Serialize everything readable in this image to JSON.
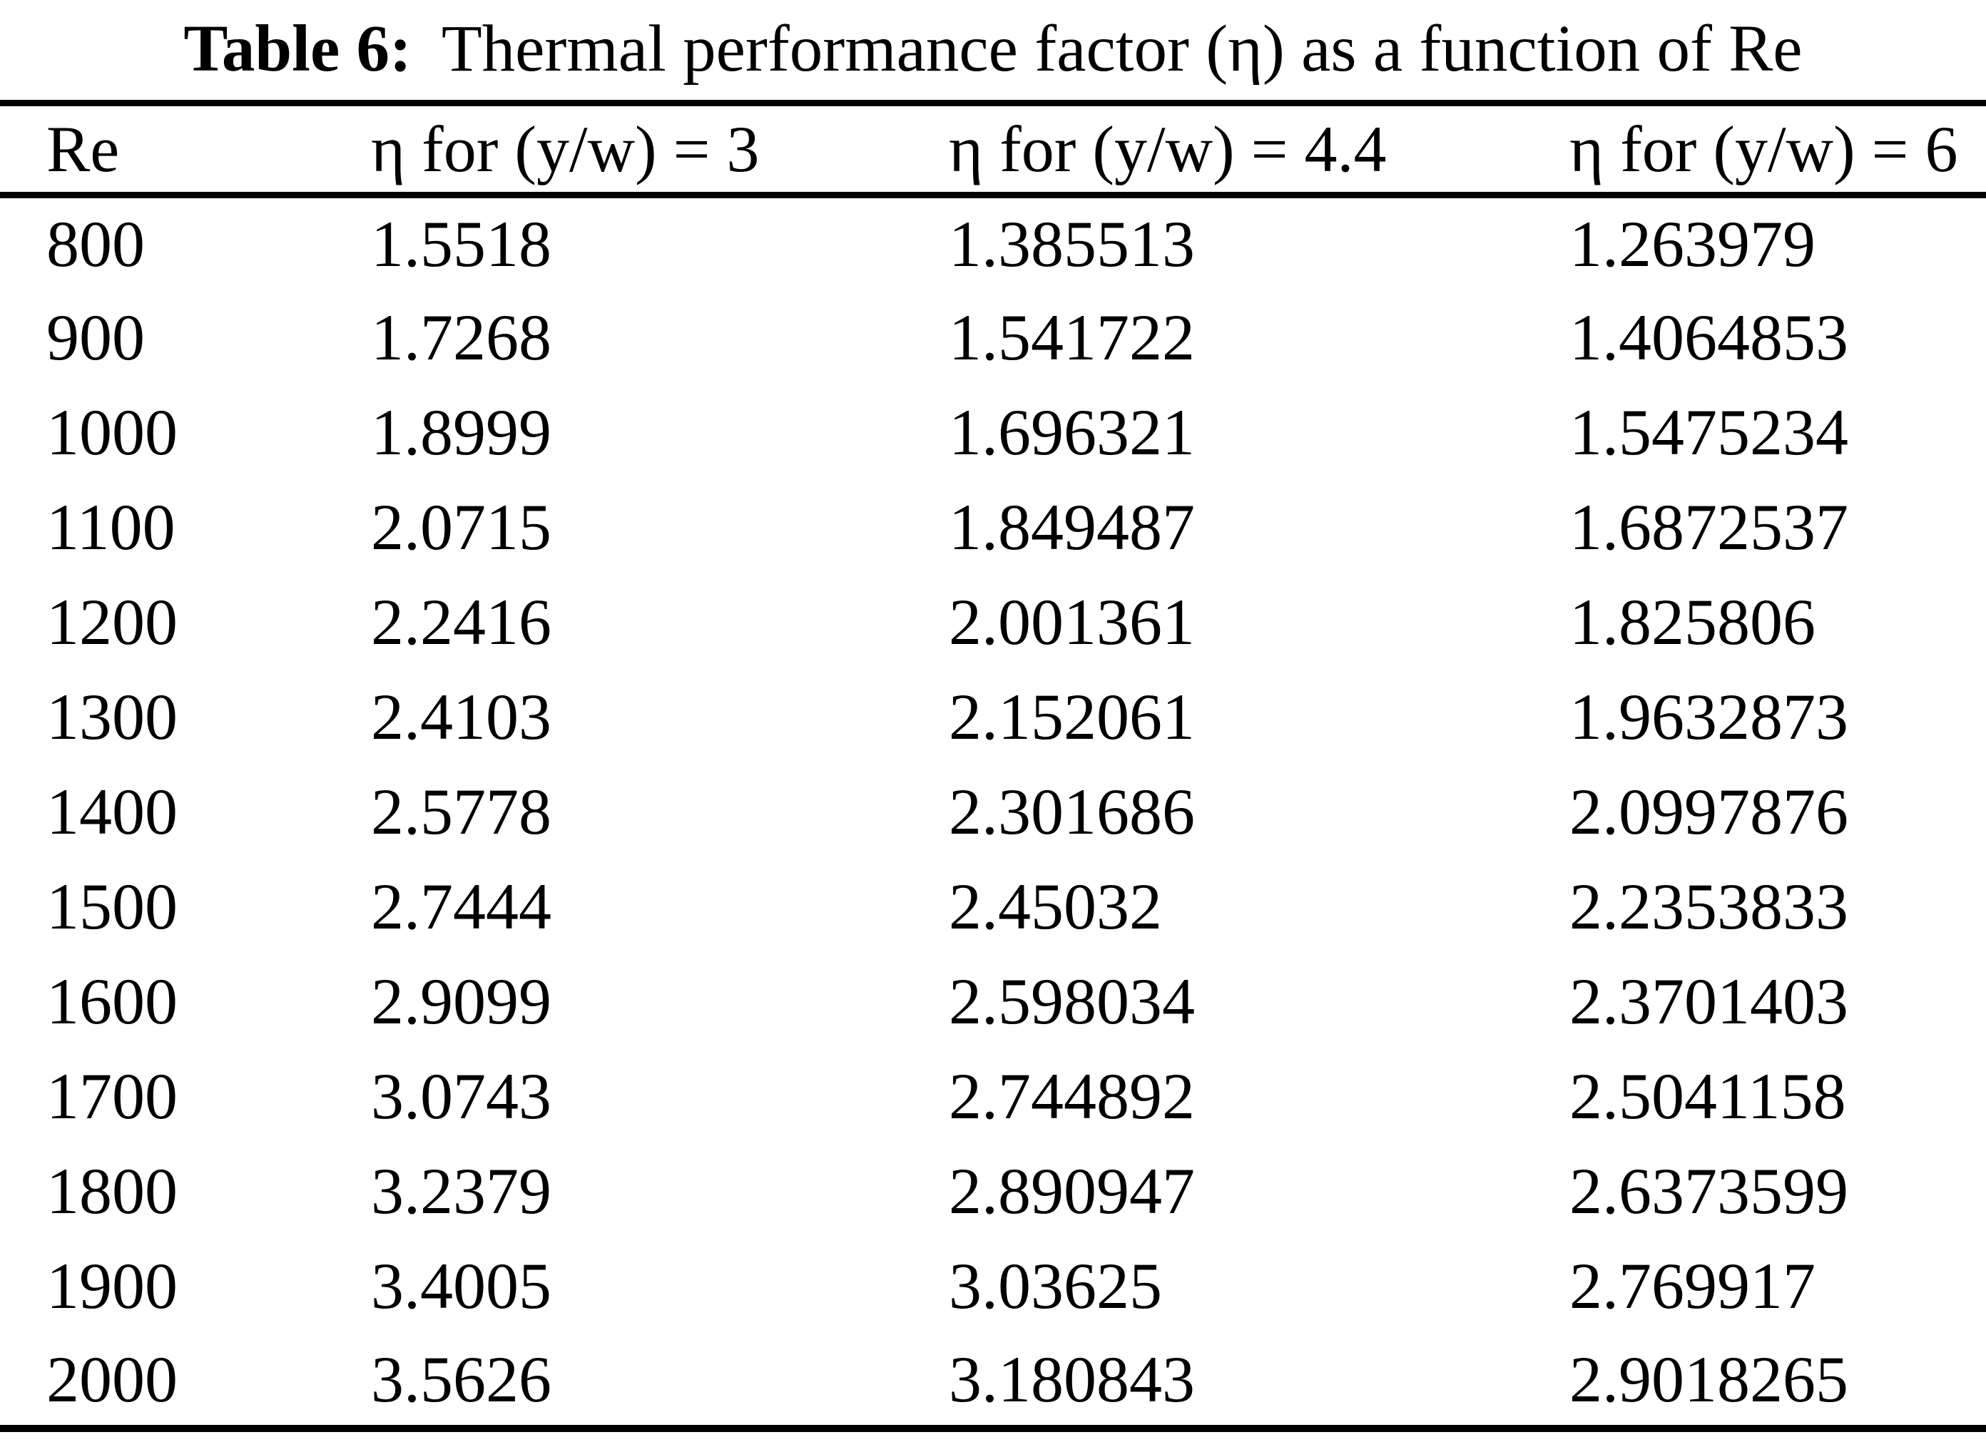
{
  "title": {
    "label": "Table 6:",
    "text": "Thermal performance factor (η) as a function of Re"
  },
  "table": {
    "columns": [
      "Re",
      "η for (y/w) = 3",
      "η for (y/w) = 4.4",
      "η for (y/w) = 6"
    ],
    "rows": [
      [
        "800",
        "1.5518",
        "1.385513",
        "1.263979"
      ],
      [
        "900",
        "1.7268",
        "1.541722",
        "1.4064853"
      ],
      [
        "1000",
        "1.8999",
        "1.696321",
        "1.5475234"
      ],
      [
        "1100",
        "2.0715",
        "1.849487",
        "1.6872537"
      ],
      [
        "1200",
        "2.2416",
        "2.001361",
        "1.825806"
      ],
      [
        "1300",
        "2.4103",
        "2.152061",
        "1.9632873"
      ],
      [
        "1400",
        "2.5778",
        "2.301686",
        "2.0997876"
      ],
      [
        "1500",
        "2.7444",
        "2.45032",
        "2.2353833"
      ],
      [
        "1600",
        "2.9099",
        "2.598034",
        "2.3701403"
      ],
      [
        "1700",
        "3.0743",
        "2.744892",
        "2.5041158"
      ],
      [
        "1800",
        "3.2379",
        "2.890947",
        "2.6373599"
      ],
      [
        "1900",
        "3.4005",
        "3.03625",
        "2.769917"
      ],
      [
        "2000",
        "3.5626",
        "3.180843",
        "2.9018265"
      ]
    ]
  }
}
